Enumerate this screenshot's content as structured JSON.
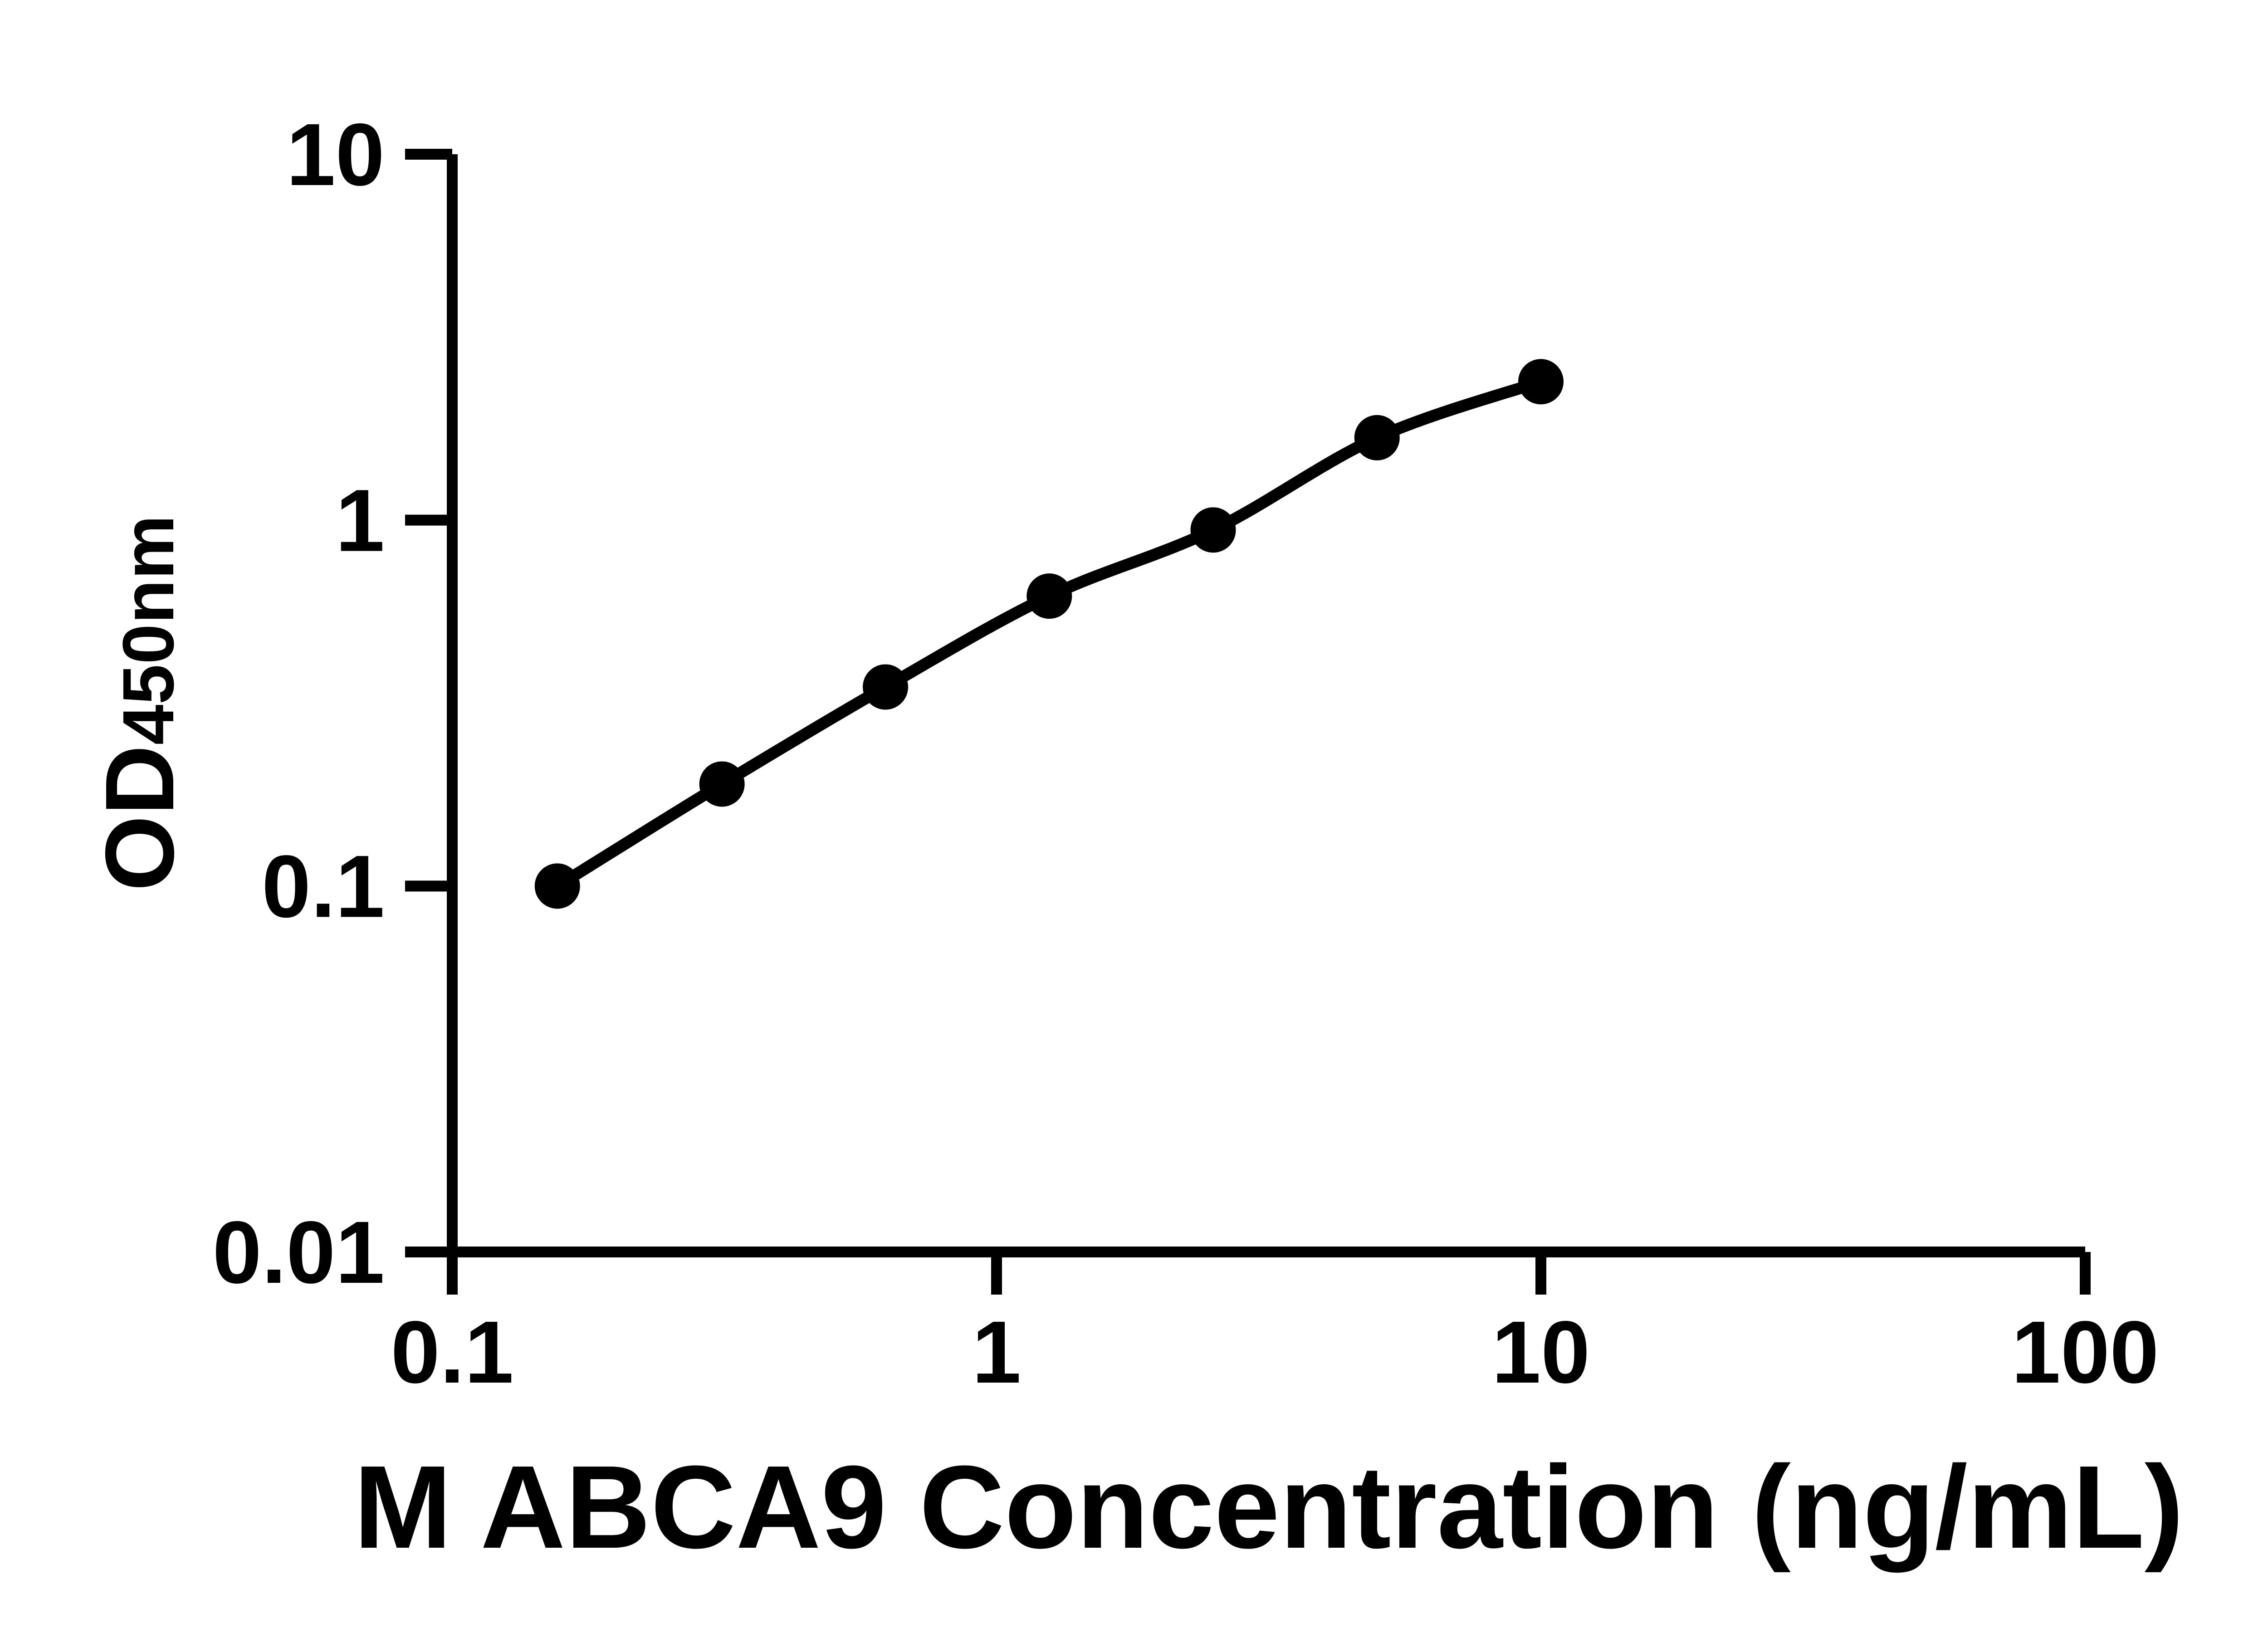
{
  "colors": {
    "background": "#ffffff",
    "foreground": "#000000"
  },
  "chart_data": {
    "type": "scatter",
    "connect": "smooth-line",
    "title": "",
    "xlabel": "M ABCA9 Concentration (ng/mL)",
    "ylabel_main": "OD",
    "ylabel_sub": "450nm",
    "xscale": "log",
    "yscale": "log",
    "xlim": [
      0.1,
      100
    ],
    "ylim": [
      0.01,
      10
    ],
    "grid": false,
    "legend": false,
    "xticks": [
      {
        "value": 0.1,
        "label": "0.1"
      },
      {
        "value": 1,
        "label": "1"
      },
      {
        "value": 10,
        "label": "10"
      },
      {
        "value": 100,
        "label": "100"
      }
    ],
    "yticks": [
      {
        "value": 10,
        "label": "10"
      },
      {
        "value": 1,
        "label": "1"
      },
      {
        "value": 0.1,
        "label": "0.1"
      },
      {
        "value": 0.01,
        "label": "0.01"
      }
    ],
    "series": [
      {
        "marker": "circle",
        "color": "#000000",
        "points": [
          {
            "x": 0.156,
            "y": 0.1
          },
          {
            "x": 0.313,
            "y": 0.19
          },
          {
            "x": 0.625,
            "y": 0.35
          },
          {
            "x": 1.25,
            "y": 0.62
          },
          {
            "x": 2.5,
            "y": 0.94
          },
          {
            "x": 5,
            "y": 1.68
          },
          {
            "x": 10,
            "y": 2.39
          }
        ]
      }
    ]
  }
}
